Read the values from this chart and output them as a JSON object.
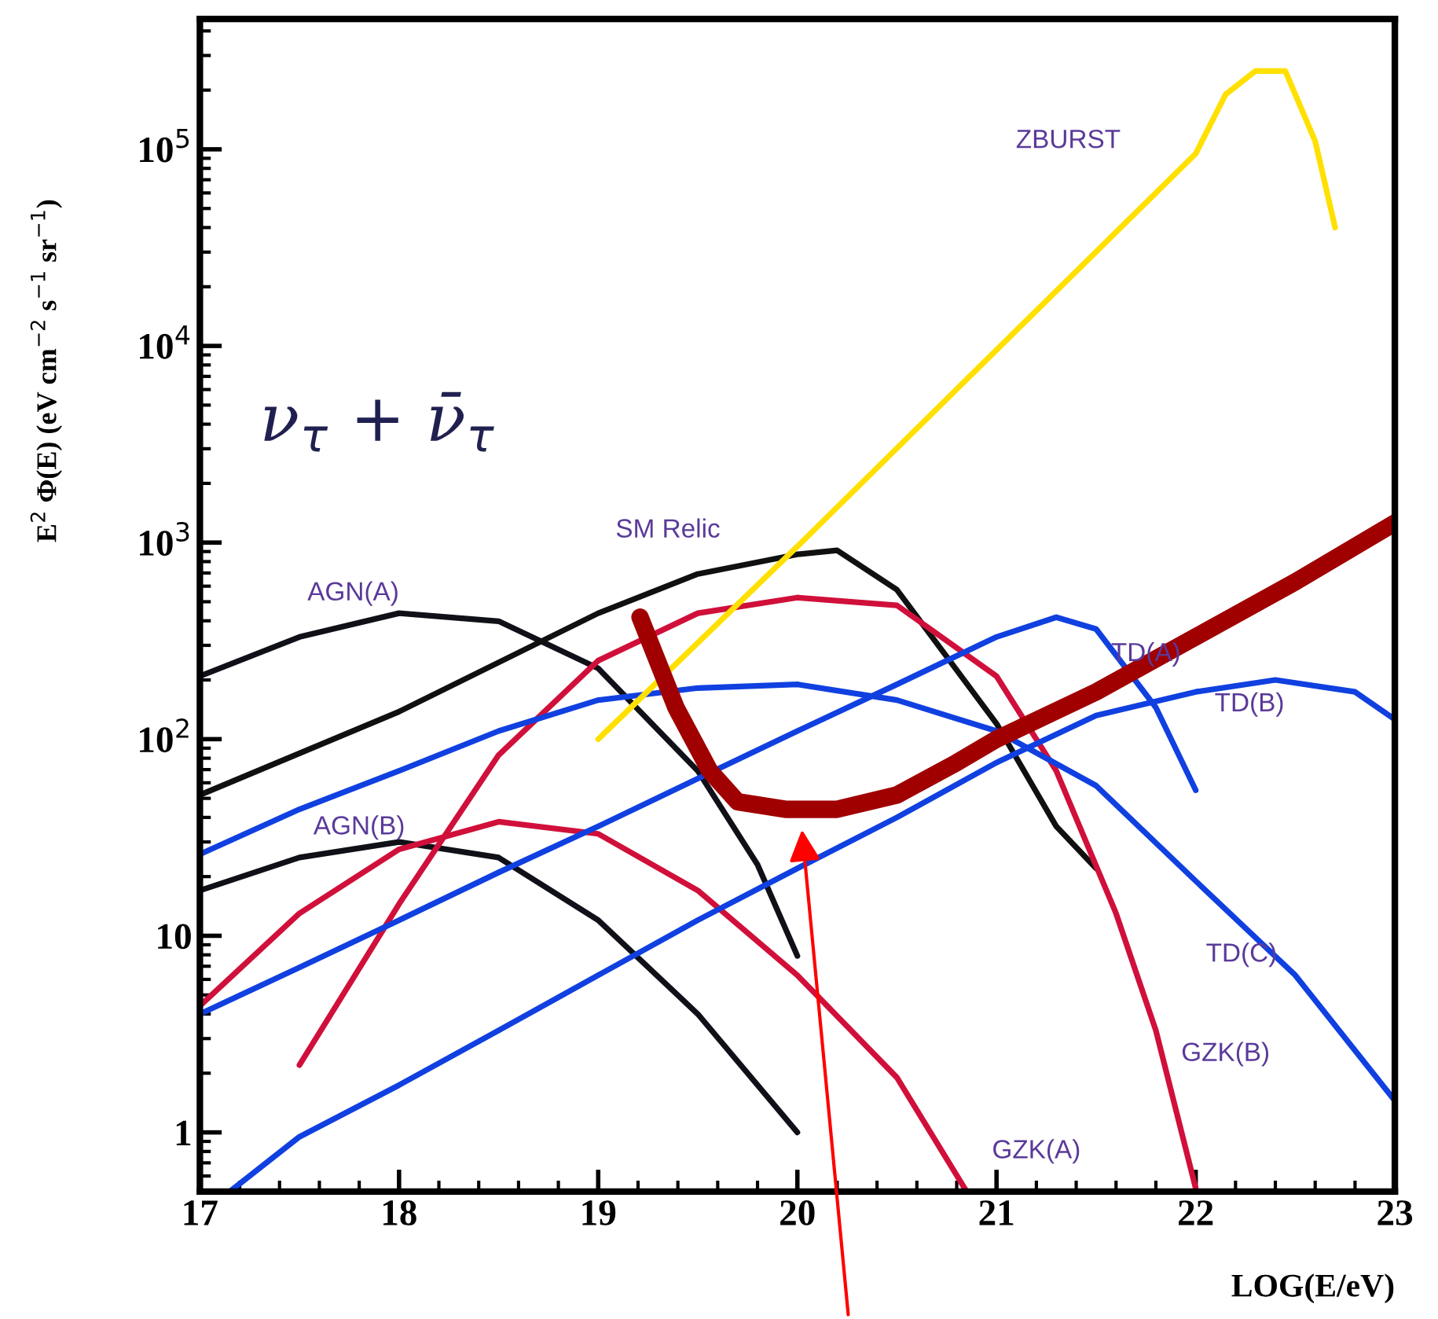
{
  "chart_data": {
    "type": "line",
    "xlabel": "LOG(E/eV)",
    "ylabel": "E$^{2}$ Φ(E) (eV cm$^{−2}$ s$^{−1}$ sr$^{−1}$)",
    "log": "y",
    "xlim": [
      17,
      23
    ],
    "ylim": [
      0.5,
      460000
    ],
    "xticks": [
      17,
      18,
      19,
      20,
      21,
      22,
      23
    ],
    "yticks": [
      1,
      10,
      {
        "value": 100,
        "label": "10$^{2}$"
      },
      {
        "value": 1000,
        "label": "10$^{3}$"
      },
      {
        "value": 10000,
        "label": "10$^{4}$"
      },
      {
        "value": 100000,
        "label": "10$^{5}$"
      }
    ],
    "grid": false,
    "legend": false,
    "marker": "none",
    "line_style": "solid",
    "series": [
      {
        "name": "AGN(A)",
        "color": "#101018",
        "x": [
          17,
          17.5,
          18,
          18.5,
          19,
          19.5,
          19.8,
          20
        ],
        "values": [
          209,
          331,
          437,
          398,
          229,
          69,
          23,
          7.9
        ]
      },
      {
        "name": "AGN(B)",
        "color": "#101018",
        "x": [
          17,
          17.5,
          18,
          18.5,
          19,
          19.5,
          20
        ],
        "values": [
          17,
          25,
          30,
          25,
          12,
          4,
          1
        ]
      },
      {
        "name": "SM Relic",
        "color": "#101010",
        "x": [
          17,
          18,
          19,
          19.5,
          20,
          20.2,
          20.5,
          21,
          21.3,
          21.5
        ],
        "values": [
          52,
          138,
          437,
          692,
          871,
          912,
          575,
          120,
          36,
          22
        ]
      },
      {
        "name": "GZK(A)",
        "color": "#d0103a",
        "x": [
          17,
          17.5,
          18,
          18.5,
          19,
          19.5,
          20,
          20.5,
          20.85
        ],
        "values": [
          4.4,
          13,
          27.5,
          38,
          33,
          17,
          6.3,
          1.9,
          0.5
        ]
      },
      {
        "name": "GZK(B)",
        "color": "#d0103a",
        "x": [
          17.5,
          18,
          18.5,
          19,
          19.5,
          20,
          20.5,
          21,
          21.3,
          21.6,
          21.8,
          22
        ],
        "values": [
          2.2,
          14.5,
          83,
          251,
          437,
          525,
          479,
          209,
          69,
          13,
          3.3,
          0.52
        ]
      },
      {
        "name": "TD(C)",
        "color": "#1040e0",
        "x": [
          17,
          17.5,
          18,
          18.5,
          19,
          19.5,
          20,
          20.5,
          21,
          21.5,
          22,
          22.5,
          23
        ],
        "values": [
          26,
          44,
          69,
          110,
          158,
          182,
          190,
          158,
          110,
          58,
          19,
          6.3,
          1.45
        ]
      },
      {
        "name": "TD(A)",
        "color": "#1040e0",
        "x": [
          17,
          17.5,
          18,
          18.5,
          19,
          19.5,
          20,
          20.5,
          21,
          21.3,
          21.5,
          21.8,
          22
        ],
        "values": [
          4,
          6.9,
          12,
          21,
          36,
          63,
          110,
          190,
          331,
          417,
          363,
          145,
          55
        ]
      },
      {
        "name": "TD(B)",
        "color": "#1040e0",
        "x": [
          17.15,
          17.5,
          18,
          18.5,
          19,
          19.5,
          20,
          20.5,
          21,
          21.5,
          22,
          22.4,
          22.8,
          23
        ],
        "values": [
          0.5,
          0.95,
          1.74,
          3.3,
          6.3,
          12,
          22,
          40,
          76,
          132,
          174,
          200,
          174,
          126
        ]
      },
      {
        "name": "ZBURST",
        "color": "#ffe000",
        "x": [
          19,
          20,
          21,
          22,
          22.15,
          22.3,
          22.45,
          22.6,
          22.7
        ],
        "values": [
          100,
          955,
          9550,
          95000,
          190000,
          250000,
          250000,
          110000,
          40000
        ]
      },
      {
        "color": "#a00000",
        "x": [
          19.21,
          19.39,
          19.56,
          19.7,
          19.94,
          20.2,
          20.5,
          20.8,
          21,
          21.5,
          22,
          22.5,
          23
        ],
        "values": [
          417,
          145,
          69,
          48,
          44,
          44,
          52,
          76,
          100,
          174,
          331,
          631,
          1259
        ]
      }
    ],
    "annotations": [
      "ν$_{τ}$ + ν̄$_{τ}$"
    ]
  }
}
